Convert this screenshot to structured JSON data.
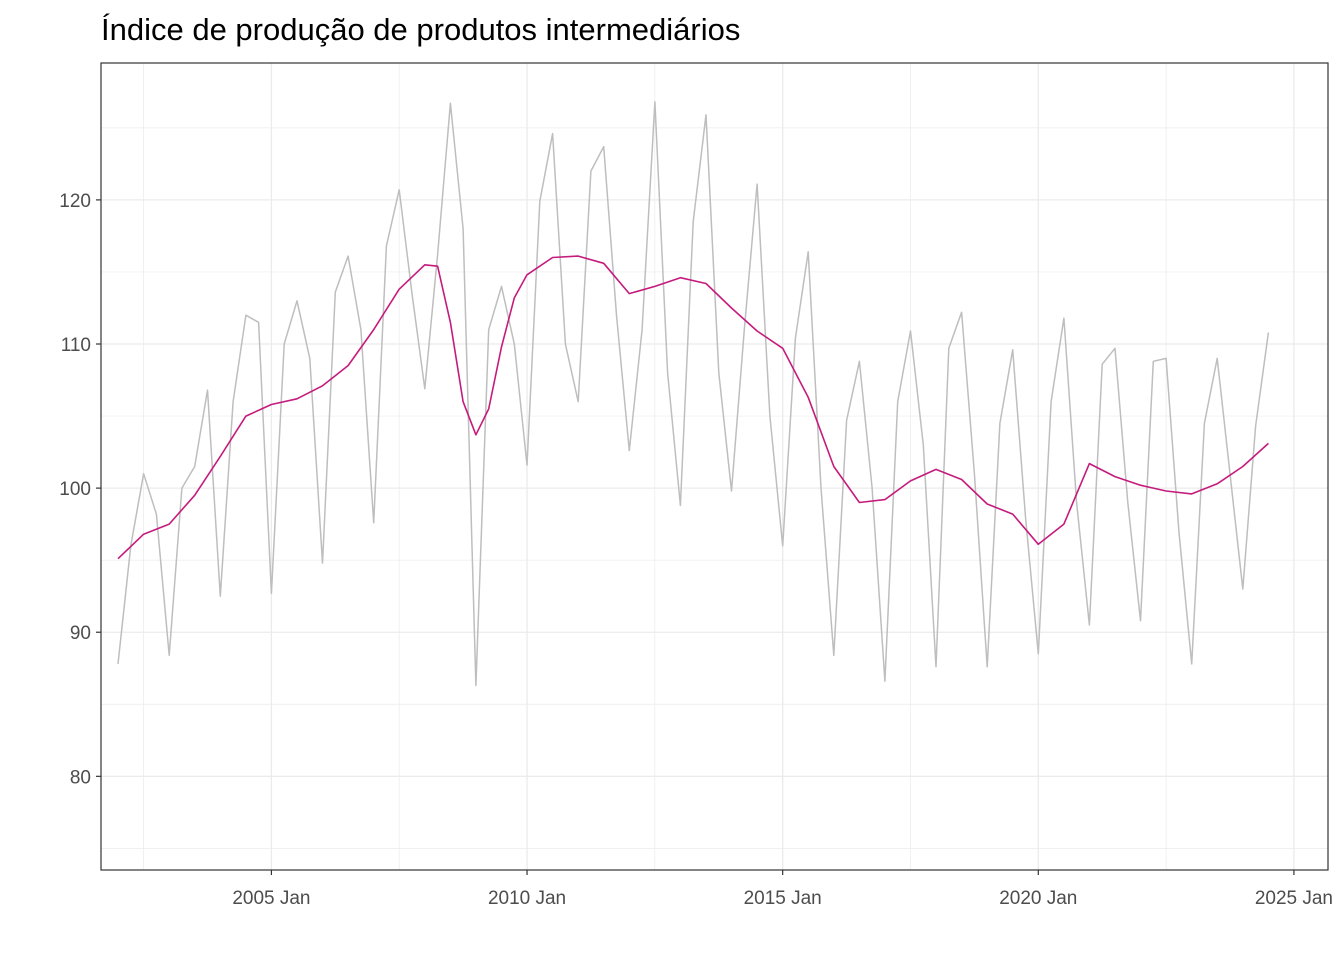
{
  "chart_data": {
    "type": "line",
    "title": "Índice de produção de produtos intermediários",
    "xlabel": "",
    "ylabel": "",
    "x_ticks": [
      "2005 Jan",
      "2010 Jan",
      "2015 Jan",
      "2020 Jan",
      "2025 Jan"
    ],
    "y_ticks": [
      "80",
      "90",
      "100",
      "110",
      "120"
    ],
    "xlim": [
      "2001-09",
      "2025-09"
    ],
    "ylim": [
      73.5,
      129.5
    ],
    "grid": true,
    "legend": "none",
    "colors": {
      "raw": "#bebebe",
      "trend": "#c51b7d",
      "grid": "#ebebeb",
      "panel_border": "#333333"
    },
    "series": [
      {
        "role": "raw",
        "x": [
          "2002-01",
          "2002-04",
          "2002-07",
          "2002-10",
          "2003-01",
          "2003-04",
          "2003-07",
          "2003-10",
          "2004-01",
          "2004-04",
          "2004-07",
          "2004-10",
          "2005-01",
          "2005-04",
          "2005-07",
          "2005-10",
          "2006-01",
          "2006-04",
          "2006-07",
          "2006-10",
          "2007-01",
          "2007-04",
          "2007-07",
          "2007-10",
          "2008-01",
          "2008-04",
          "2008-07",
          "2008-10",
          "2009-01",
          "2009-04",
          "2009-07",
          "2009-10",
          "2010-01",
          "2010-04",
          "2010-07",
          "2010-10",
          "2011-01",
          "2011-04",
          "2011-07",
          "2011-10",
          "2012-01",
          "2012-04",
          "2012-07",
          "2012-10",
          "2013-01",
          "2013-04",
          "2013-07",
          "2013-10",
          "2014-01",
          "2014-04",
          "2014-07",
          "2014-10",
          "2015-01",
          "2015-04",
          "2015-07",
          "2015-10",
          "2016-01",
          "2016-04",
          "2016-07",
          "2016-10",
          "2017-01",
          "2017-04",
          "2017-07",
          "2017-10",
          "2018-01",
          "2018-04",
          "2018-07",
          "2018-10",
          "2019-01",
          "2019-04",
          "2019-07",
          "2019-10",
          "2020-01",
          "2020-04",
          "2020-07",
          "2020-10",
          "2021-01",
          "2021-04",
          "2021-07",
          "2021-10",
          "2022-01",
          "2022-04",
          "2022-07",
          "2022-10",
          "2023-01",
          "2023-04",
          "2023-07",
          "2023-10",
          "2024-01",
          "2024-04",
          "2024-07"
        ],
        "y": [
          87.8,
          96,
          101,
          98.2,
          88.4,
          100,
          101.5,
          106.8,
          92.5,
          106,
          112,
          111.5,
          92.7,
          110,
          113,
          109,
          94.8,
          113.6,
          116.1,
          111,
          97.6,
          116.8,
          120.7,
          113.5,
          106.9,
          116.2,
          126.7,
          118,
          86.3,
          111,
          114,
          110,
          101.6,
          119.9,
          124.6,
          110,
          106,
          122,
          123.7,
          112,
          102.6,
          111,
          126.8,
          108,
          98.8,
          118.5,
          125.9,
          108,
          99.8,
          111,
          121.1,
          105,
          96,
          110.4,
          116.4,
          100,
          88.4,
          104.7,
          108.8,
          100,
          86.6,
          106,
          110.9,
          103,
          87.6,
          109.7,
          112.2,
          101,
          87.6,
          104.5,
          109.6,
          98,
          88.5,
          106,
          111.8,
          99,
          90.5,
          108.6,
          109.7,
          99,
          90.8,
          108.8,
          109,
          97,
          87.8,
          104.5,
          109,
          101,
          93,
          104.3,
          110.8
        ]
      },
      {
        "role": "trend",
        "x": [
          "2002-01",
          "2002-07",
          "2003-01",
          "2003-07",
          "2004-01",
          "2004-07",
          "2005-01",
          "2005-07",
          "2006-01",
          "2006-07",
          "2007-01",
          "2007-07",
          "2008-01",
          "2008-04",
          "2008-07",
          "2008-10",
          "2009-01",
          "2009-04",
          "2009-07",
          "2009-10",
          "2010-01",
          "2010-07",
          "2011-01",
          "2011-07",
          "2012-01",
          "2012-07",
          "2013-01",
          "2013-07",
          "2014-01",
          "2014-07",
          "2015-01",
          "2015-07",
          "2016-01",
          "2016-07",
          "2017-01",
          "2017-07",
          "2018-01",
          "2018-07",
          "2019-01",
          "2019-07",
          "2020-01",
          "2020-07",
          "2021-01",
          "2021-07",
          "2022-01",
          "2022-07",
          "2023-01",
          "2023-07",
          "2024-01",
          "2024-07"
        ],
        "y": [
          95.1,
          96.8,
          97.5,
          99.5,
          102.2,
          105,
          105.8,
          106.2,
          107.1,
          108.5,
          111,
          113.8,
          115.5,
          115.4,
          111.5,
          106,
          103.7,
          105.5,
          109.8,
          113.2,
          114.8,
          116,
          116.1,
          115.6,
          113.5,
          114,
          114.6,
          114.2,
          112.5,
          110.9,
          109.7,
          106.3,
          101.5,
          99,
          99.2,
          100.5,
          101.3,
          100.6,
          98.9,
          98.2,
          96.1,
          97.5,
          101.7,
          100.8,
          100.2,
          99.8,
          99.6,
          100.3,
          101.5,
          103.1
        ]
      }
    ]
  }
}
